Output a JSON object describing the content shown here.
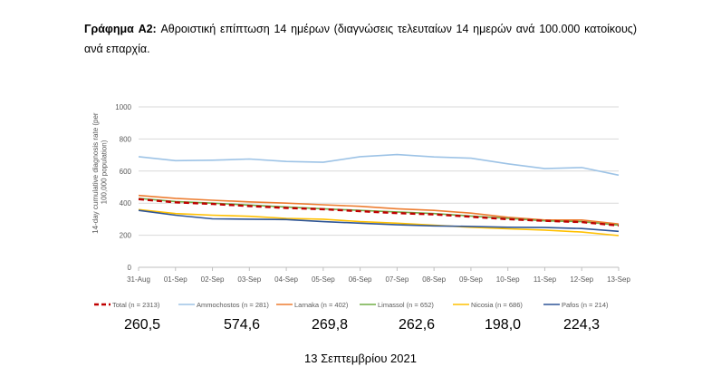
{
  "caption": {
    "label": "Γράφημα A2:",
    "text": " Αθροιστική επίπτωση 14 ημέρων (διαγνώσεις τελευταίων 14 ημερών ανά 100.000 κατοίκους) ανά επαρχία."
  },
  "chart_data": {
    "type": "line",
    "ylabel_lines": [
      "14-day cumulative diagnosis rate (per",
      "100,000 population)"
    ],
    "ylim": [
      0,
      1000
    ],
    "yticks": [
      0,
      200,
      400,
      600,
      800,
      1000
    ],
    "categories": [
      "31-Aug",
      "01-Sep",
      "02-Sep",
      "03-Sep",
      "04-Sep",
      "05-Sep",
      "06-Sep",
      "07-Sep",
      "08-Sep",
      "09-Sep",
      "10-Sep",
      "11-Sep",
      "12-Sep",
      "13-Sep"
    ],
    "grid": true,
    "legend_position": "bottom",
    "series": [
      {
        "name": "Total (n = 2313)",
        "color": "#c00000",
        "dash": true,
        "values": [
          425,
          405,
          395,
          382,
          370,
          362,
          350,
          338,
          330,
          315,
          300,
          290,
          282,
          260.5
        ]
      },
      {
        "name": "Ammochostos (n = 281)",
        "color": "#9dc3e6",
        "dash": false,
        "values": [
          690,
          665,
          668,
          675,
          660,
          655,
          690,
          703,
          688,
          680,
          645,
          615,
          622,
          574.6
        ]
      },
      {
        "name": "Larnaka (n = 402)",
        "color": "#ed7d31",
        "dash": false,
        "values": [
          448,
          430,
          418,
          408,
          400,
          390,
          380,
          365,
          355,
          338,
          312,
          295,
          295,
          269.8
        ]
      },
      {
        "name": "Limassol (n = 652)",
        "color": "#70ad47",
        "dash": false,
        "values": [
          430,
          410,
          400,
          388,
          376,
          365,
          355,
          345,
          335,
          320,
          305,
          290,
          285,
          262.6
        ]
      },
      {
        "name": "Nicosia (n = 686)",
        "color": "#ffc000",
        "dash": false,
        "values": [
          360,
          335,
          325,
          318,
          305,
          300,
          285,
          275,
          262,
          250,
          240,
          232,
          220,
          198.0
        ]
      },
      {
        "name": "Pafos (n = 214)",
        "color": "#2e5597",
        "dash": false,
        "values": [
          355,
          325,
          302,
          300,
          298,
          285,
          275,
          265,
          258,
          255,
          250,
          248,
          242,
          224.3
        ]
      }
    ]
  },
  "rates": [
    "260,5",
    "574,6",
    "269,8",
    "262,6",
    "198,0",
    "224,3"
  ],
  "date": "13 Σεπτεμβρίου 2021"
}
